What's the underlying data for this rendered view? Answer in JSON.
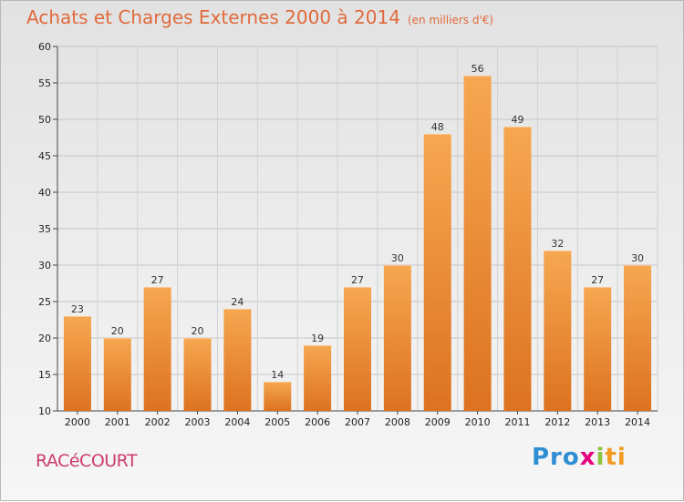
{
  "header": {
    "title": "Achats et Charges Externes 2000 à 2014",
    "subtitle": "(en milliers d'€)"
  },
  "footer": {
    "city": "RACéCOURT",
    "brand_parts": [
      "Pro",
      "x",
      "i",
      "ti"
    ]
  },
  "colors": {
    "bar_top": "#f6a750",
    "bar_bottom": "#dd7220",
    "title": "#e06a3c",
    "city": "#cc3d6e"
  },
  "chart_data": {
    "type": "bar",
    "categories": [
      "2000",
      "2001",
      "2002",
      "2003",
      "2004",
      "2005",
      "2006",
      "2007",
      "2008",
      "2009",
      "2010",
      "2011",
      "2012",
      "2013",
      "2014"
    ],
    "values": [
      23,
      20,
      27,
      20,
      24,
      14,
      19,
      27,
      30,
      48,
      56,
      49,
      32,
      27,
      30
    ],
    "ylim": [
      10,
      60
    ],
    "yticks": [
      10,
      15,
      20,
      25,
      30,
      35,
      40,
      45,
      50,
      55,
      60
    ],
    "grid": true,
    "xlabel": "",
    "ylabel": ""
  }
}
